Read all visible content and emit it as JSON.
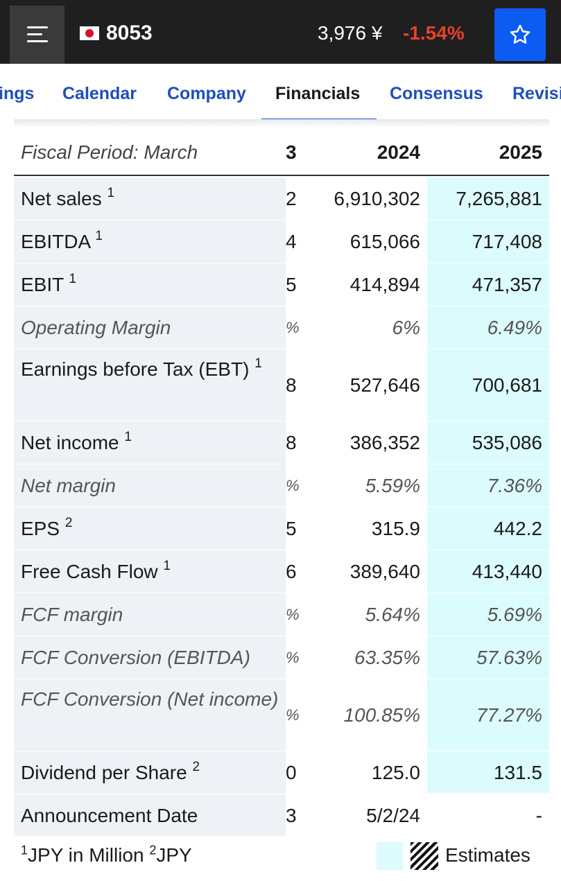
{
  "header": {
    "ticker": "8053",
    "price": "3,976 ¥",
    "change": "-1.54%",
    "colors": {
      "bar": "#1f1f1f",
      "star_button": "#0d5cf2",
      "change_negative": "#e8412c"
    }
  },
  "tabs": [
    {
      "label": "ings",
      "active": false
    },
    {
      "label": "Calendar",
      "active": false
    },
    {
      "label": "Company",
      "active": false
    },
    {
      "label": "Financials",
      "active": true
    },
    {
      "label": "Consensus",
      "active": false
    },
    {
      "label": "Revisi",
      "active": false
    }
  ],
  "table": {
    "header": {
      "label": "Fiscal Period: March",
      "col_cut": "3",
      "col_2024": "2024",
      "col_2025": "2025"
    },
    "rows": [
      {
        "label": "Net sales",
        "sup": "1",
        "cut": "2",
        "v2024": "6,910,302",
        "v2025": "7,265,881",
        "italic": false
      },
      {
        "label": "EBITDA",
        "sup": "1",
        "cut": "4",
        "v2024": "615,066",
        "v2025": "717,408",
        "italic": false
      },
      {
        "label": "EBIT",
        "sup": "1",
        "cut": "5",
        "v2024": "414,894",
        "v2025": "471,357",
        "italic": false
      },
      {
        "label": "Operating Margin",
        "sup": "",
        "cut": "%",
        "v2024": "6%",
        "v2025": "6.49%",
        "italic": true
      },
      {
        "label": "Earnings before Tax (EBT)",
        "sup": "1",
        "cut": "8",
        "v2024": "527,646",
        "v2025": "700,681",
        "italic": false
      },
      {
        "label": "Net income",
        "sup": "1",
        "cut": "8",
        "v2024": "386,352",
        "v2025": "535,086",
        "italic": false
      },
      {
        "label": "Net margin",
        "sup": "",
        "cut": "%",
        "v2024": "5.59%",
        "v2025": "7.36%",
        "italic": true
      },
      {
        "label": "EPS",
        "sup": "2",
        "cut": "5",
        "v2024": "315.9",
        "v2025": "442.2",
        "italic": false
      },
      {
        "label": "Free Cash Flow",
        "sup": "1",
        "cut": "6",
        "v2024": "389,640",
        "v2025": "413,440",
        "italic": false
      },
      {
        "label": "FCF margin",
        "sup": "",
        "cut": "%",
        "v2024": "5.64%",
        "v2025": "5.69%",
        "italic": true
      },
      {
        "label": "FCF Conversion (EBITDA)",
        "sup": "",
        "cut": "%",
        "v2024": "63.35%",
        "v2025": "57.63%",
        "italic": true
      },
      {
        "label": "FCF Conversion (Net income)",
        "sup": "",
        "cut": "%",
        "v2024": "100.85%",
        "v2025": "77.27%",
        "italic": true
      },
      {
        "label": "Dividend per Share",
        "sup": "2",
        "cut": "0",
        "v2024": "125.0",
        "v2025": "131.5",
        "italic": false
      },
      {
        "label": "Announcement Date",
        "sup": "",
        "cut": "3",
        "v2024": "5/2/24",
        "v2025": "-",
        "italic": false
      }
    ]
  },
  "footer": {
    "note_sup1": "1",
    "note_text1": "JPY in Million",
    "note_sup2": "2",
    "note_text2": "JPY",
    "legend_label": "Estimates",
    "estimate_color": "#dcfbfd"
  }
}
